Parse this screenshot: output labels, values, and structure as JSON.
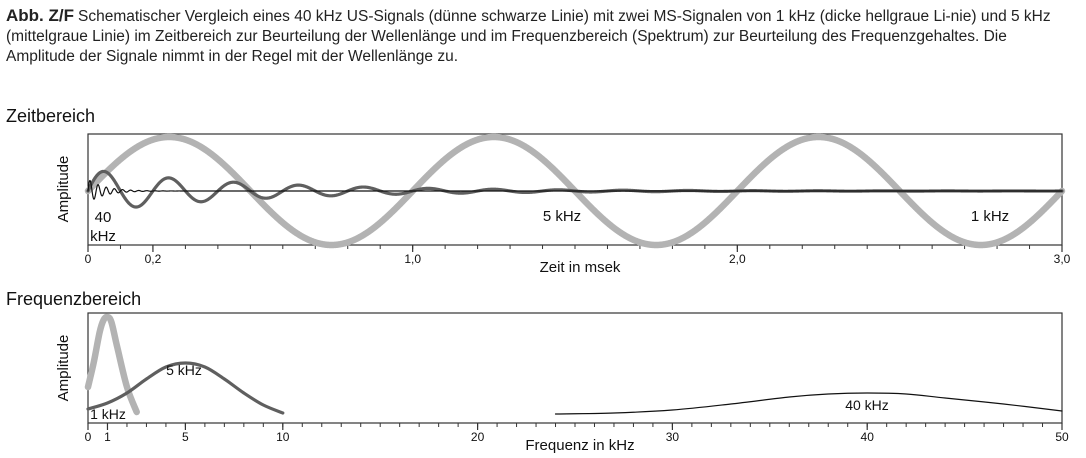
{
  "caption": {
    "label": "Abb. Z/F",
    "text": "Schematischer Vergleich eines 40 kHz US-Signals (dünne schwarze Linie) mit zwei MS-Signalen von 1 kHz (dicke hellgraue Li-nie) und 5 kHz (mittelgraue Linie) im Zeitbereich zur Beurteilung der Wellenlänge und im Frequenzbereich (Spektrum) zur Beurteilung des Frequenzgehaltes. Die Amplitude der Signale nimmt in der Regel mit der Wellenlänge zu."
  },
  "colors": {
    "signal_1khz": "#b3b3b3",
    "signal_5khz": "#5f5f5f",
    "signal_40khz": "#111111",
    "frame": "#333333"
  },
  "chart_data": [
    {
      "type": "line",
      "title": "Zeitbereich",
      "xlabel": "Zeit in msek",
      "ylabel": "Amplitude",
      "xlim": [
        0,
        3.0
      ],
      "xticks": [
        {
          "value": 0,
          "label": "0"
        },
        {
          "value": 0.2,
          "label": "0,2"
        },
        {
          "value": 1.0,
          "label": "1,0"
        },
        {
          "value": 2.0,
          "label": "2,0"
        },
        {
          "value": 3.0,
          "label": "3,0"
        }
      ],
      "minor_tick_step": 0.1,
      "grid": false,
      "series": [
        {
          "name": "1 kHz",
          "frequency_khz": 1,
          "amplitude": 1.0,
          "decay_ms": 0,
          "style": "thick-light-grey",
          "label_at_x": 2.8
        },
        {
          "name": "5 kHz",
          "frequency_khz": 5,
          "amplitude": 0.4,
          "decay_ms": 0.5,
          "style": "medium-grey",
          "label_at_x": 1.37
        },
        {
          "name": "40 kHz",
          "frequency_khz": 40,
          "amplitude": 0.22,
          "decay_ms": 0.05,
          "style": "thin-black",
          "label_at_x": 0.05
        }
      ],
      "annotations": [
        "40",
        "kHz",
        "5 kHz",
        "1 kHz"
      ]
    },
    {
      "type": "line",
      "title": "Frequenzbereich",
      "xlabel": "Frequenz in kHz",
      "ylabel": "Amplitude",
      "xlim": [
        0,
        50
      ],
      "xticks": [
        {
          "value": 0,
          "label": "0"
        },
        {
          "value": 1,
          "label": "1"
        },
        {
          "value": 5,
          "label": "5"
        },
        {
          "value": 10,
          "label": "10"
        },
        {
          "value": 20,
          "label": "20"
        },
        {
          "value": 30,
          "label": "30"
        },
        {
          "value": 40,
          "label": "40"
        },
        {
          "value": 50,
          "label": "50"
        }
      ],
      "minor_tick_step": 1,
      "grid": false,
      "series": [
        {
          "name": "1 kHz",
          "x": [
            0,
            0.3,
            0.6,
            0.8,
            1.0,
            1.2,
            1.5,
            2.0,
            2.5
          ],
          "y": [
            0.3,
            0.55,
            0.85,
            0.97,
            1.0,
            0.95,
            0.7,
            0.3,
            0.05
          ],
          "style": "thick-light-grey"
        },
        {
          "name": "5 kHz",
          "x": [
            0,
            1,
            2,
            3,
            4,
            5,
            6,
            7,
            8,
            9,
            10
          ],
          "y": [
            0.08,
            0.14,
            0.24,
            0.38,
            0.5,
            0.54,
            0.5,
            0.38,
            0.24,
            0.12,
            0.04
          ],
          "style": "medium-grey"
        },
        {
          "name": "40 kHz",
          "x": [
            24,
            27,
            30,
            33,
            36,
            38,
            40,
            42,
            44,
            47,
            50
          ],
          "y": [
            0.03,
            0.04,
            0.07,
            0.13,
            0.2,
            0.23,
            0.24,
            0.23,
            0.19,
            0.13,
            0.06
          ],
          "style": "thin-black"
        }
      ],
      "annotations": [
        "1 kHz",
        "5 kHz",
        "40 kHz"
      ]
    }
  ]
}
